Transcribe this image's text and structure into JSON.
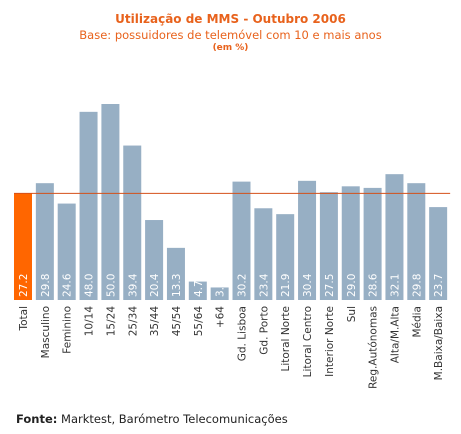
{
  "colors": {
    "title": "#e8621c",
    "bar": "#97afc4",
    "highlight_bar": "#ff6600",
    "reference_line": "#d4511a",
    "value_label": "#ffffff",
    "axis_label": "#333333"
  },
  "source": {
    "label": "Fonte:",
    "text": "Marktest, Barómetro Telecomunicações"
  },
  "chart_data": {
    "type": "bar",
    "title": "Utilização de MMS - Outubro 2006",
    "subtitle": "Base: possuidores de telemóvel com 10 e mais anos",
    "unit": "(em %)",
    "categories": [
      "Total",
      "Masculino",
      "Feminino",
      "10/14",
      "15/24",
      "25/34",
      "35/44",
      "45/54",
      "55/64",
      "+64",
      "Gd. Lisboa",
      "Gd. Porto",
      "Litoral Norte",
      "Litoral Centro",
      "Interior Norte",
      "Sul",
      "Reg.Autónomas",
      "Alta/M.Alta",
      "Média",
      "M.Baixa/Baixa"
    ],
    "values": [
      27.2,
      29.8,
      24.6,
      48.0,
      50.0,
      39.4,
      20.4,
      13.3,
      4.7,
      3.2,
      30.2,
      23.4,
      21.9,
      30.4,
      27.5,
      29.0,
      28.6,
      32.1,
      29.8,
      23.7
    ],
    "value_labels": [
      "27.2",
      "29.8",
      "24.6",
      "48.0",
      "50.0",
      "39.4",
      "20.4",
      "13.3",
      "4.7",
      "3.2",
      "30.2",
      "23.4",
      "21.9",
      "30.4",
      "27.5",
      "29.0",
      "28.6",
      "32.1",
      "29.8",
      "23.7"
    ],
    "highlight_index": 0,
    "reference_line_value": 27.2,
    "ylim": [
      0,
      50
    ],
    "grid": false,
    "legend": "none"
  }
}
